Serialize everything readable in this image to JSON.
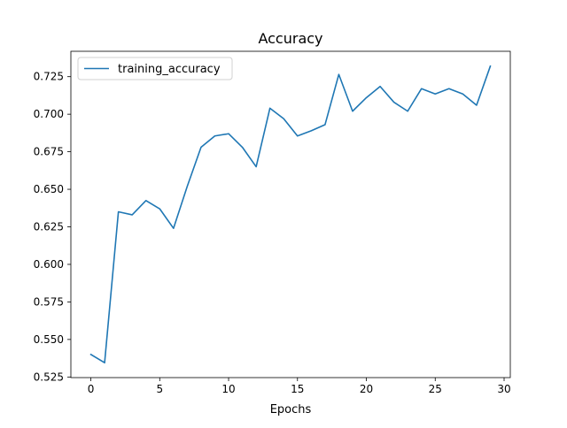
{
  "chart_data": {
    "type": "line",
    "title": "Accuracy",
    "xlabel": "Epochs",
    "ylabel": "",
    "xlim": [
      -1.45,
      30.45
    ],
    "ylim": [
      0.5246,
      0.7419
    ],
    "grid": false,
    "legend_position": "upper-left",
    "x_ticks": [
      0,
      5,
      10,
      15,
      20,
      25,
      30
    ],
    "x_tick_labels": [
      "0",
      "5",
      "10",
      "15",
      "20",
      "25",
      "30"
    ],
    "y_ticks": [
      0.525,
      0.55,
      0.575,
      0.6,
      0.625,
      0.65,
      0.675,
      0.7,
      0.725
    ],
    "y_tick_labels": [
      "0.525",
      "0.550",
      "0.575",
      "0.600",
      "0.625",
      "0.650",
      "0.675",
      "0.700",
      "0.725"
    ],
    "series": [
      {
        "name": "training_accuracy",
        "color": "#1f77b4",
        "x": [
          0,
          1,
          2,
          3,
          4,
          5,
          6,
          7,
          8,
          9,
          10,
          11,
          12,
          13,
          14,
          15,
          16,
          17,
          18,
          19,
          20,
          21,
          22,
          23,
          24,
          25,
          26,
          27,
          28,
          29
        ],
        "values": [
          0.54,
          0.5345,
          0.635,
          0.633,
          0.6425,
          0.637,
          0.624,
          0.652,
          0.678,
          0.6855,
          0.687,
          0.678,
          0.665,
          0.704,
          0.697,
          0.6855,
          0.689,
          0.693,
          0.7265,
          0.702,
          0.711,
          0.7185,
          0.708,
          0.702,
          0.717,
          0.7135,
          0.717,
          0.7135,
          0.706,
          0.732
        ]
      }
    ]
  }
}
